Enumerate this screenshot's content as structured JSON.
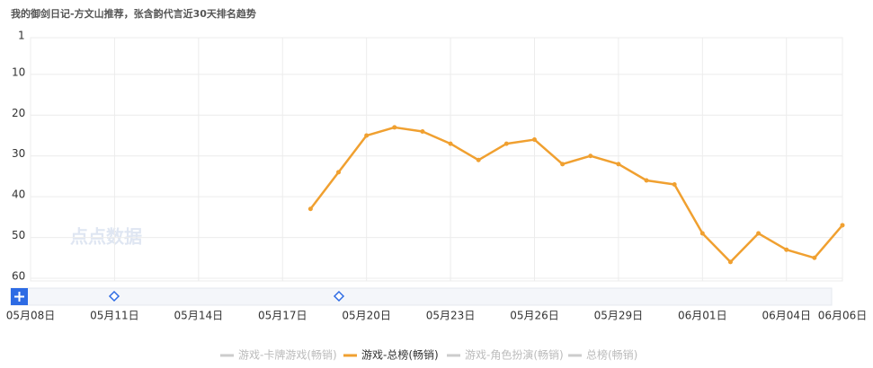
{
  "chart_data": {
    "type": "line",
    "title": "我的御剑日记-方文山推荐，张含韵代言近30天排名趋势",
    "watermark": "点点数据",
    "categories": [
      "05月08日",
      null,
      null,
      "05月11日",
      null,
      null,
      "05月14日",
      null,
      null,
      "05月17日",
      null,
      null,
      "05月20日",
      null,
      null,
      "05月23日",
      null,
      null,
      "05月26日",
      null,
      null,
      "05月29日",
      null,
      null,
      "06月01日",
      null,
      null,
      "06月04日",
      null,
      "06月06日"
    ],
    "series": [
      {
        "name": "游戏-总榜(畅销)",
        "color": "#f0a030",
        "values": [
          null,
          null,
          null,
          null,
          null,
          null,
          null,
          null,
          null,
          null,
          43,
          34,
          25,
          23,
          24,
          27,
          31,
          27,
          26,
          32,
          30,
          32,
          36,
          37,
          49,
          56,
          49,
          53,
          55,
          47
        ]
      }
    ],
    "legend": [
      {
        "name": "游戏-卡牌游戏(畅销)",
        "color": "#cccccc"
      },
      {
        "name": "游戏-总榜(畅销)",
        "color": "#f0a030"
      },
      {
        "name": "游戏-角色扮演(畅销)",
        "color": "#cccccc"
      },
      {
        "name": "总榜(畅销)",
        "color": "#cccccc"
      }
    ],
    "ylim": [
      1,
      60
    ],
    "y_inverted": true,
    "yticks": [
      1,
      10,
      20,
      30,
      40,
      50,
      60
    ],
    "grid": true
  }
}
